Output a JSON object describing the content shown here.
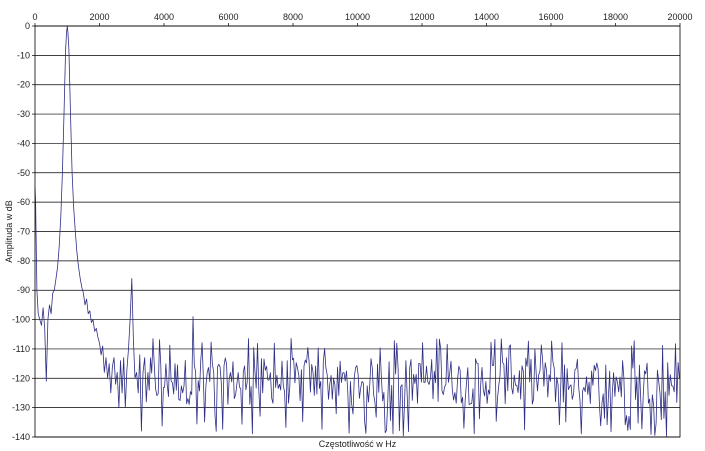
{
  "chart_data": {
    "type": "line",
    "title": "",
    "xlabel": "Częstotliwość w Hz",
    "ylabel": "Amplituda w dB",
    "xlim": [
      0,
      20000
    ],
    "ylim": [
      -140,
      0
    ],
    "x_ticks": [
      0,
      2000,
      4000,
      6000,
      8000,
      10000,
      12000,
      14000,
      16000,
      18000,
      20000
    ],
    "y_ticks": [
      0,
      -10,
      -20,
      -30,
      -40,
      -50,
      -60,
      -70,
      -80,
      -90,
      -100,
      -110,
      -120,
      -130,
      -140
    ],
    "x_axis_position": "top",
    "grid": "horizontal",
    "legend": "none",
    "colors": {
      "series": "#2e2e86",
      "grid": "#000000",
      "axis": "#000000"
    },
    "series": [
      {
        "x": [
          0,
          20,
          60,
          100,
          150,
          200,
          250,
          300,
          350,
          400,
          450,
          500,
          550,
          600,
          650,
          700,
          750,
          800,
          850,
          900,
          950,
          980,
          1000,
          1020,
          1050,
          1100,
          1150,
          1200,
          1250,
          1300,
          1350,
          1400,
          1450,
          1500,
          1550,
          1600,
          1650,
          1700,
          1750,
          1800,
          1850,
          1900,
          1950,
          2000,
          2050,
          2100,
          2150,
          2200,
          2250,
          2300,
          2350,
          2400,
          2450,
          2500,
          2550,
          2600,
          2650,
          2700,
          2750,
          2800,
          2850,
          2900,
          2950,
          3000,
          3050,
          3100,
          3150,
          3200,
          3250,
          3300,
          3350,
          3400,
          3450,
          3500
        ],
        "y": [
          -55,
          -60,
          -90,
          -98,
          -100,
          -102,
          -96,
          -103,
          -121,
          -100,
          -95,
          -98,
          -91,
          -90,
          -86,
          -82,
          -75,
          -65,
          -50,
          -30,
          -8,
          -2,
          0,
          -2,
          -8,
          -30,
          -50,
          -62,
          -70,
          -77,
          -82,
          -86,
          -89,
          -91,
          -95,
          -93,
          -98,
          -97,
          -101,
          -100,
          -104,
          -103,
          -106,
          -108,
          -112,
          -109,
          -118,
          -113,
          -120,
          -115,
          -125,
          -116,
          -113,
          -122,
          -118,
          -130,
          -114,
          -125,
          -113,
          -130,
          -117,
          -110,
          -100,
          -86,
          -107,
          -120,
          -118,
          -125,
          -112,
          -138,
          -118,
          -113,
          -128,
          -118
        ]
      }
    ],
    "noise_floor": {
      "x_start": 3500,
      "x_end": 20000,
      "typical": -120,
      "range": [
        -140,
        -110
      ]
    },
    "spurs": [
      {
        "x": 4900,
        "y": -99
      },
      {
        "x": 7000,
        "y": -108
      },
      {
        "x": 9600,
        "y": -110
      },
      {
        "x": 15500,
        "y": -110
      },
      {
        "x": 18500,
        "y": -109
      }
    ]
  }
}
